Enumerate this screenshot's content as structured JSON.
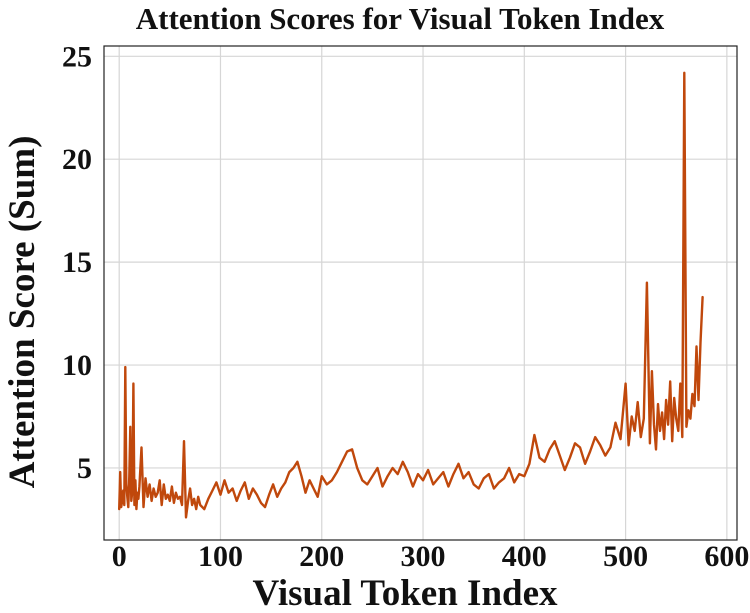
{
  "chart_data": {
    "type": "line",
    "title": "Attention Scores for Visual Token Index",
    "xlabel": "Visual Token Index",
    "ylabel": "Attention Score (Sum)",
    "xlim": [
      -15,
      610
    ],
    "ylim": [
      1.5,
      25.5
    ],
    "xticks": [
      0,
      100,
      200,
      300,
      400,
      500,
      600
    ],
    "yticks": [
      5,
      10,
      15,
      20,
      25
    ],
    "grid": true,
    "color": "#c0480c",
    "series": [
      {
        "x": [
          0,
          1,
          2,
          3,
          4,
          5,
          6,
          7,
          8,
          9,
          10,
          11,
          12,
          13,
          14,
          15,
          16,
          17,
          18,
          19,
          20,
          22,
          24,
          26,
          28,
          30,
          32,
          34,
          36,
          38,
          40,
          42,
          44,
          46,
          48,
          50,
          52,
          54,
          56,
          58,
          60,
          62,
          64,
          66,
          68,
          70,
          72,
          74,
          76,
          78,
          80,
          84,
          88,
          92,
          96,
          100,
          104,
          108,
          112,
          116,
          120,
          124,
          128,
          132,
          136,
          140,
          144,
          148,
          152,
          156,
          160,
          164,
          168,
          172,
          176,
          180,
          184,
          188,
          192,
          196,
          200,
          205,
          210,
          215,
          220,
          225,
          230,
          235,
          240,
          245,
          250,
          255,
          260,
          265,
          270,
          275,
          280,
          285,
          290,
          295,
          300,
          305,
          310,
          315,
          320,
          325,
          330,
          335,
          340,
          345,
          350,
          355,
          360,
          365,
          370,
          375,
          380,
          385,
          390,
          395,
          400,
          405,
          410,
          415,
          420,
          425,
          430,
          435,
          440,
          445,
          450,
          455,
          460,
          465,
          470,
          475,
          480,
          485,
          490,
          495,
          500,
          503,
          506,
          509,
          512,
          515,
          518,
          521,
          524,
          526,
          528,
          530,
          532,
          534,
          536,
          538,
          540,
          542,
          544,
          546,
          548,
          550,
          552,
          554,
          556,
          558,
          560,
          562,
          564,
          566,
          568,
          570,
          572,
          574,
          576
        ],
        "y": [
          3.0,
          4.8,
          3.1,
          3.4,
          3.9,
          3.2,
          9.9,
          4.2,
          3.6,
          3.1,
          4.6,
          7.0,
          3.4,
          3.9,
          9.1,
          3.2,
          4.4,
          3.0,
          3.8,
          3.5,
          4.1,
          6.0,
          3.1,
          4.5,
          3.6,
          4.2,
          3.4,
          4.0,
          3.6,
          3.8,
          4.4,
          3.2,
          4.2,
          3.5,
          3.7,
          3.4,
          4.1,
          3.3,
          3.8,
          3.5,
          3.6,
          3.2,
          6.3,
          2.6,
          3.4,
          4.0,
          3.2,
          3.5,
          3.0,
          3.6,
          3.2,
          3.0,
          3.5,
          3.9,
          4.3,
          3.7,
          4.4,
          3.8,
          4.0,
          3.4,
          3.9,
          4.3,
          3.5,
          4.0,
          3.7,
          3.3,
          3.1,
          3.7,
          4.2,
          3.6,
          4.0,
          4.3,
          4.8,
          5.0,
          5.3,
          4.6,
          3.8,
          4.4,
          4.0,
          3.6,
          4.6,
          4.2,
          4.4,
          4.8,
          5.3,
          5.8,
          5.9,
          5.0,
          4.4,
          4.2,
          4.6,
          5.0,
          4.1,
          4.6,
          5.0,
          4.7,
          5.3,
          4.8,
          4.1,
          4.7,
          4.4,
          4.9,
          4.2,
          4.5,
          4.8,
          4.1,
          4.7,
          5.2,
          4.5,
          4.8,
          4.2,
          4.0,
          4.5,
          4.7,
          4.0,
          4.3,
          4.5,
          5.0,
          4.3,
          4.7,
          4.6,
          5.2,
          6.6,
          5.5,
          5.3,
          5.9,
          6.3,
          5.6,
          4.9,
          5.5,
          6.2,
          6.0,
          5.2,
          5.8,
          6.5,
          6.1,
          5.6,
          6.0,
          7.2,
          6.4,
          9.1,
          6.1,
          7.5,
          6.8,
          8.2,
          6.5,
          7.4,
          14.0,
          6.2,
          9.7,
          7.1,
          5.9,
          8.1,
          6.8,
          7.7,
          6.4,
          8.3,
          7.1,
          9.2,
          6.3,
          8.4,
          7.4,
          6.8,
          9.1,
          6.5,
          24.2,
          7.0,
          7.8,
          7.4,
          8.6,
          8.0,
          10.9,
          8.3,
          11.1,
          13.3
        ]
      }
    ]
  }
}
